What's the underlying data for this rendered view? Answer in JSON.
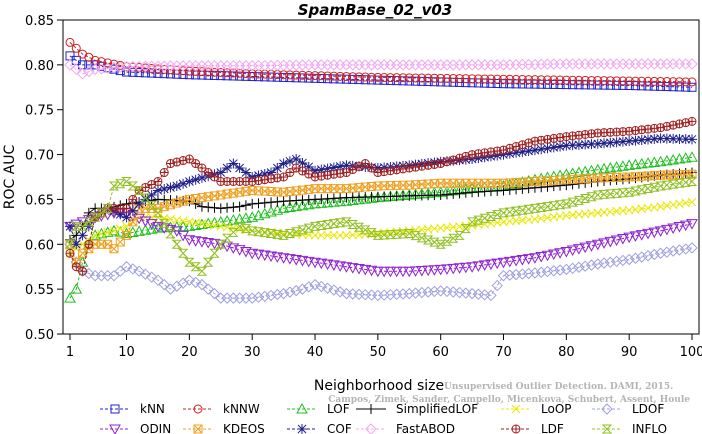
{
  "chart_data": {
    "type": "line",
    "title": "SpamBase_02_v03",
    "xlabel": "Neighborhood size",
    "ylabel": "ROC AUC",
    "xlim": [
      1,
      100
    ],
    "ylim": [
      0.5,
      0.85
    ],
    "xticks": [
      "1",
      "10",
      "20",
      "30",
      "40",
      "50",
      "60",
      "70",
      "80",
      "90",
      "100"
    ],
    "yticks": [
      "0.50",
      "0.55",
      "0.60",
      "0.65",
      "0.70",
      "0.75",
      "0.80",
      "0.85"
    ],
    "grid": false,
    "legend_position": "bottom",
    "watermark": {
      "line1": "Unsupervised Outlier Detection. DAMI, 2015.",
      "line2": "Campos, Zimek, Sander, Campello, Micenkova, Schubert, Assent, Houle"
    },
    "series": [
      {
        "name": "kNN",
        "color": "#2020d0",
        "marker": "square",
        "points": [
          [
            1,
            0.81
          ],
          [
            3,
            0.8
          ],
          [
            5,
            0.8
          ],
          [
            10,
            0.792
          ],
          [
            20,
            0.789
          ],
          [
            30,
            0.787
          ],
          [
            40,
            0.785
          ],
          [
            50,
            0.783
          ],
          [
            60,
            0.781
          ],
          [
            70,
            0.779
          ],
          [
            80,
            0.778
          ],
          [
            90,
            0.777
          ],
          [
            100,
            0.775
          ]
        ]
      },
      {
        "name": "kNNW",
        "color": "#d02020",
        "marker": "circle",
        "points": [
          [
            1,
            0.825
          ],
          [
            3,
            0.812
          ],
          [
            5,
            0.805
          ],
          [
            10,
            0.798
          ],
          [
            20,
            0.793
          ],
          [
            30,
            0.79
          ],
          [
            40,
            0.788
          ],
          [
            50,
            0.786
          ],
          [
            60,
            0.785
          ],
          [
            70,
            0.784
          ],
          [
            80,
            0.783
          ],
          [
            90,
            0.782
          ],
          [
            100,
            0.781
          ]
        ]
      },
      {
        "name": "LOF",
        "color": "#20c020",
        "marker": "triangle-up",
        "points": [
          [
            1,
            0.54
          ],
          [
            2,
            0.55
          ],
          [
            3,
            0.58
          ],
          [
            4,
            0.6
          ],
          [
            5,
            0.61
          ],
          [
            8,
            0.615
          ],
          [
            10,
            0.612
          ],
          [
            15,
            0.618
          ],
          [
            20,
            0.62
          ],
          [
            25,
            0.625
          ],
          [
            30,
            0.63
          ],
          [
            35,
            0.64
          ],
          [
            40,
            0.645
          ],
          [
            45,
            0.648
          ],
          [
            50,
            0.652
          ],
          [
            55,
            0.655
          ],
          [
            60,
            0.658
          ],
          [
            65,
            0.662
          ],
          [
            70,
            0.665
          ],
          [
            75,
            0.672
          ],
          [
            80,
            0.678
          ],
          [
            85,
            0.683
          ],
          [
            90,
            0.688
          ],
          [
            95,
            0.692
          ],
          [
            100,
            0.697
          ]
        ]
      },
      {
        "name": "SimplifiedLOF",
        "color": "#000000",
        "marker": "plus",
        "points": [
          [
            1,
            0.605
          ],
          [
            2,
            0.61
          ],
          [
            3,
            0.62
          ],
          [
            4,
            0.635
          ],
          [
            5,
            0.64
          ],
          [
            7,
            0.64
          ],
          [
            10,
            0.645
          ],
          [
            15,
            0.65
          ],
          [
            20,
            0.648
          ],
          [
            22,
            0.642
          ],
          [
            25,
            0.64
          ],
          [
            28,
            0.642
          ],
          [
            30,
            0.645
          ],
          [
            35,
            0.648
          ],
          [
            40,
            0.65
          ],
          [
            45,
            0.652
          ],
          [
            50,
            0.653
          ],
          [
            55,
            0.654
          ],
          [
            60,
            0.655
          ],
          [
            65,
            0.658
          ],
          [
            70,
            0.66
          ],
          [
            75,
            0.663
          ],
          [
            80,
            0.666
          ],
          [
            85,
            0.67
          ],
          [
            90,
            0.673
          ],
          [
            95,
            0.677
          ],
          [
            100,
            0.68
          ]
        ]
      },
      {
        "name": "LoOP",
        "color": "#e8e800",
        "marker": "x",
        "points": [
          [
            1,
            0.59
          ],
          [
            3,
            0.6
          ],
          [
            5,
            0.61
          ],
          [
            8,
            0.615
          ],
          [
            10,
            0.62
          ],
          [
            12,
            0.63
          ],
          [
            15,
            0.63
          ],
          [
            20,
            0.625
          ],
          [
            25,
            0.62
          ],
          [
            30,
            0.615
          ],
          [
            35,
            0.612
          ],
          [
            40,
            0.61
          ],
          [
            45,
            0.61
          ],
          [
            50,
            0.612
          ],
          [
            55,
            0.615
          ],
          [
            60,
            0.618
          ],
          [
            65,
            0.621
          ],
          [
            70,
            0.625
          ],
          [
            75,
            0.628
          ],
          [
            80,
            0.632
          ],
          [
            85,
            0.635
          ],
          [
            90,
            0.638
          ],
          [
            95,
            0.642
          ],
          [
            100,
            0.647
          ]
        ]
      },
      {
        "name": "LDOF",
        "color": "#a0a0e0",
        "marker": "diamond",
        "points": [
          [
            1,
            0.6
          ],
          [
            2,
            0.58
          ],
          [
            3,
            0.57
          ],
          [
            5,
            0.565
          ],
          [
            8,
            0.565
          ],
          [
            10,
            0.575
          ],
          [
            12,
            0.57
          ],
          [
            15,
            0.56
          ],
          [
            17,
            0.55
          ],
          [
            20,
            0.56
          ],
          [
            22,
            0.555
          ],
          [
            25,
            0.54
          ],
          [
            30,
            0.54
          ],
          [
            35,
            0.545
          ],
          [
            38,
            0.55
          ],
          [
            40,
            0.555
          ],
          [
            45,
            0.545
          ],
          [
            50,
            0.543
          ],
          [
            55,
            0.545
          ],
          [
            60,
            0.548
          ],
          [
            65,
            0.545
          ],
          [
            68,
            0.543
          ],
          [
            70,
            0.565
          ],
          [
            75,
            0.568
          ],
          [
            80,
            0.572
          ],
          [
            85,
            0.578
          ],
          [
            90,
            0.583
          ],
          [
            95,
            0.59
          ],
          [
            100,
            0.596
          ]
        ]
      },
      {
        "name": "ODIN",
        "color": "#9020d0",
        "marker": "triangle-down",
        "points": [
          [
            1,
            0.62
          ],
          [
            3,
            0.625
          ],
          [
            5,
            0.63
          ],
          [
            8,
            0.635
          ],
          [
            10,
            0.635
          ],
          [
            15,
            0.62
          ],
          [
            18,
            0.615
          ],
          [
            20,
            0.605
          ],
          [
            25,
            0.6
          ],
          [
            30,
            0.59
          ],
          [
            35,
            0.585
          ],
          [
            40,
            0.58
          ],
          [
            45,
            0.575
          ],
          [
            50,
            0.57
          ],
          [
            55,
            0.57
          ],
          [
            60,
            0.572
          ],
          [
            65,
            0.575
          ],
          [
            70,
            0.58
          ],
          [
            75,
            0.585
          ],
          [
            80,
            0.592
          ],
          [
            85,
            0.6
          ],
          [
            90,
            0.608
          ],
          [
            95,
            0.615
          ],
          [
            100,
            0.623
          ]
        ]
      },
      {
        "name": "KDEOS",
        "color": "#f0a020",
        "marker": "square-x",
        "points": [
          [
            1,
            0.6
          ],
          [
            2,
            0.58
          ],
          [
            3,
            0.59
          ],
          [
            5,
            0.6
          ],
          [
            7,
            0.6
          ],
          [
            8,
            0.595
          ],
          [
            10,
            0.61
          ],
          [
            12,
            0.64
          ],
          [
            15,
            0.64
          ],
          [
            20,
            0.65
          ],
          [
            25,
            0.655
          ],
          [
            30,
            0.66
          ],
          [
            35,
            0.658
          ],
          [
            40,
            0.662
          ],
          [
            45,
            0.662
          ],
          [
            50,
            0.665
          ],
          [
            55,
            0.666
          ],
          [
            60,
            0.668
          ],
          [
            65,
            0.668
          ],
          [
            70,
            0.668
          ],
          [
            75,
            0.67
          ],
          [
            80,
            0.672
          ],
          [
            85,
            0.674
          ],
          [
            90,
            0.675
          ],
          [
            95,
            0.677
          ],
          [
            100,
            0.678
          ]
        ]
      },
      {
        "name": "COF",
        "color": "#20208a",
        "marker": "asterisk",
        "points": [
          [
            1,
            0.62
          ],
          [
            2,
            0.6
          ],
          [
            3,
            0.61
          ],
          [
            5,
            0.63
          ],
          [
            7,
            0.64
          ],
          [
            10,
            0.63
          ],
          [
            12,
            0.645
          ],
          [
            15,
            0.66
          ],
          [
            18,
            0.665
          ],
          [
            20,
            0.67
          ],
          [
            25,
            0.68
          ],
          [
            27,
            0.69
          ],
          [
            30,
            0.675
          ],
          [
            33,
            0.68
          ],
          [
            35,
            0.69
          ],
          [
            37,
            0.695
          ],
          [
            40,
            0.682
          ],
          [
            45,
            0.688
          ],
          [
            50,
            0.685
          ],
          [
            55,
            0.688
          ],
          [
            60,
            0.692
          ],
          [
            65,
            0.695
          ],
          [
            70,
            0.7
          ],
          [
            75,
            0.705
          ],
          [
            80,
            0.71
          ],
          [
            85,
            0.712
          ],
          [
            90,
            0.715
          ],
          [
            95,
            0.718
          ],
          [
            100,
            0.717
          ]
        ]
      },
      {
        "name": "FastABOD",
        "color": "#f0a8f0",
        "marker": "diamond",
        "points": [
          [
            1,
            0.8
          ],
          [
            2,
            0.795
          ],
          [
            3,
            0.79
          ],
          [
            5,
            0.795
          ],
          [
            10,
            0.798
          ],
          [
            20,
            0.799
          ],
          [
            30,
            0.799
          ],
          [
            40,
            0.8
          ],
          [
            50,
            0.8
          ],
          [
            60,
            0.8
          ],
          [
            70,
            0.8
          ],
          [
            80,
            0.801
          ],
          [
            90,
            0.801
          ],
          [
            100,
            0.801
          ]
        ]
      },
      {
        "name": "LDF",
        "color": "#a02020",
        "marker": "circle-plus",
        "points": [
          [
            1,
            0.59
          ],
          [
            2,
            0.575
          ],
          [
            3,
            0.57
          ],
          [
            4,
            0.6
          ],
          [
            5,
            0.63
          ],
          [
            7,
            0.64
          ],
          [
            10,
            0.64
          ],
          [
            12,
            0.66
          ],
          [
            15,
            0.67
          ],
          [
            17,
            0.69
          ],
          [
            20,
            0.695
          ],
          [
            22,
            0.685
          ],
          [
            25,
            0.67
          ],
          [
            30,
            0.67
          ],
          [
            35,
            0.675
          ],
          [
            37,
            0.685
          ],
          [
            40,
            0.675
          ],
          [
            45,
            0.68
          ],
          [
            48,
            0.69
          ],
          [
            50,
            0.68
          ],
          [
            55,
            0.685
          ],
          [
            60,
            0.69
          ],
          [
            65,
            0.7
          ],
          [
            70,
            0.705
          ],
          [
            75,
            0.715
          ],
          [
            80,
            0.72
          ],
          [
            85,
            0.724
          ],
          [
            90,
            0.726
          ],
          [
            95,
            0.73
          ],
          [
            100,
            0.737
          ]
        ]
      },
      {
        "name": "INFLO",
        "color": "#90c020",
        "marker": "hourglass",
        "points": [
          [
            1,
            0.6
          ],
          [
            2,
            0.62
          ],
          [
            3,
            0.62
          ],
          [
            5,
            0.63
          ],
          [
            7,
            0.64
          ],
          [
            8,
            0.665
          ],
          [
            10,
            0.67
          ],
          [
            12,
            0.66
          ],
          [
            15,
            0.635
          ],
          [
            18,
            0.6
          ],
          [
            20,
            0.58
          ],
          [
            22,
            0.57
          ],
          [
            25,
            0.6
          ],
          [
            28,
            0.62
          ],
          [
            30,
            0.615
          ],
          [
            35,
            0.61
          ],
          [
            40,
            0.62
          ],
          [
            45,
            0.625
          ],
          [
            50,
            0.61
          ],
          [
            55,
            0.612
          ],
          [
            60,
            0.6
          ],
          [
            63,
            0.61
          ],
          [
            65,
            0.625
          ],
          [
            70,
            0.635
          ],
          [
            75,
            0.64
          ],
          [
            80,
            0.645
          ],
          [
            85,
            0.655
          ],
          [
            90,
            0.658
          ],
          [
            95,
            0.665
          ],
          [
            100,
            0.67
          ]
        ]
      }
    ]
  }
}
